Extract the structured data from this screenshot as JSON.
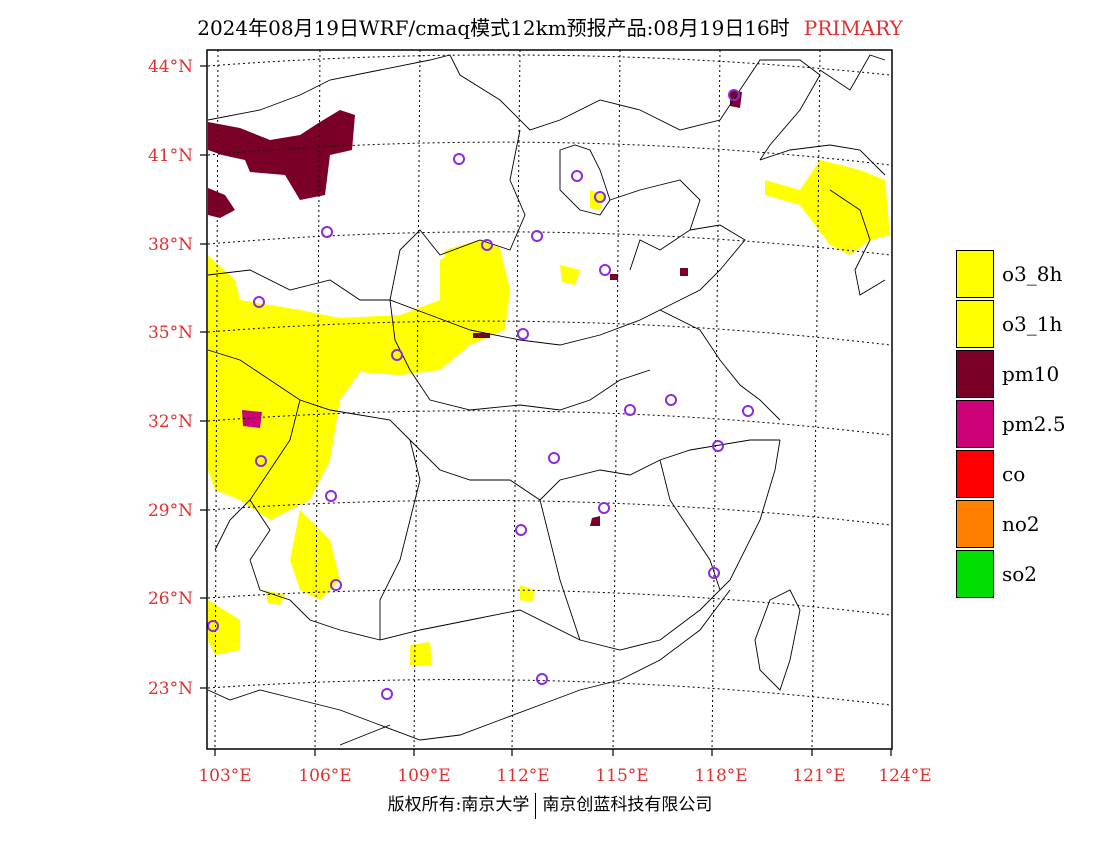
{
  "title": {
    "main": "2024年08月19日WRF/cmaq模式12km预报产品:08月19日16时",
    "tag": "PRIMARY"
  },
  "map": {
    "lat_labels": [
      "44°N",
      "41°N",
      "38°N",
      "35°N",
      "32°N",
      "29°N",
      "26°N",
      "23°N"
    ],
    "lon_labels": [
      "103°E",
      "106°E",
      "109°E",
      "112°E",
      "115°E",
      "118°E",
      "121°E",
      "124°E"
    ],
    "station_color": "#8a2be2",
    "frame_color": "#000000"
  },
  "legend": {
    "items": [
      {
        "label": "o3_8h",
        "color": "#ffff00"
      },
      {
        "label": "o3_1h",
        "color": "#ffff00"
      },
      {
        "label": "pm10",
        "color": "#7b0028"
      },
      {
        "label": "pm2.5",
        "color": "#cc0077"
      },
      {
        "label": "co",
        "color": "#ff0000"
      },
      {
        "label": "no2",
        "color": "#ff7f00"
      },
      {
        "label": "so2",
        "color": "#00dd00"
      }
    ]
  },
  "footer": {
    "left": "版权所有:南京大学",
    "right": "南京创蓝科技有限公司"
  }
}
